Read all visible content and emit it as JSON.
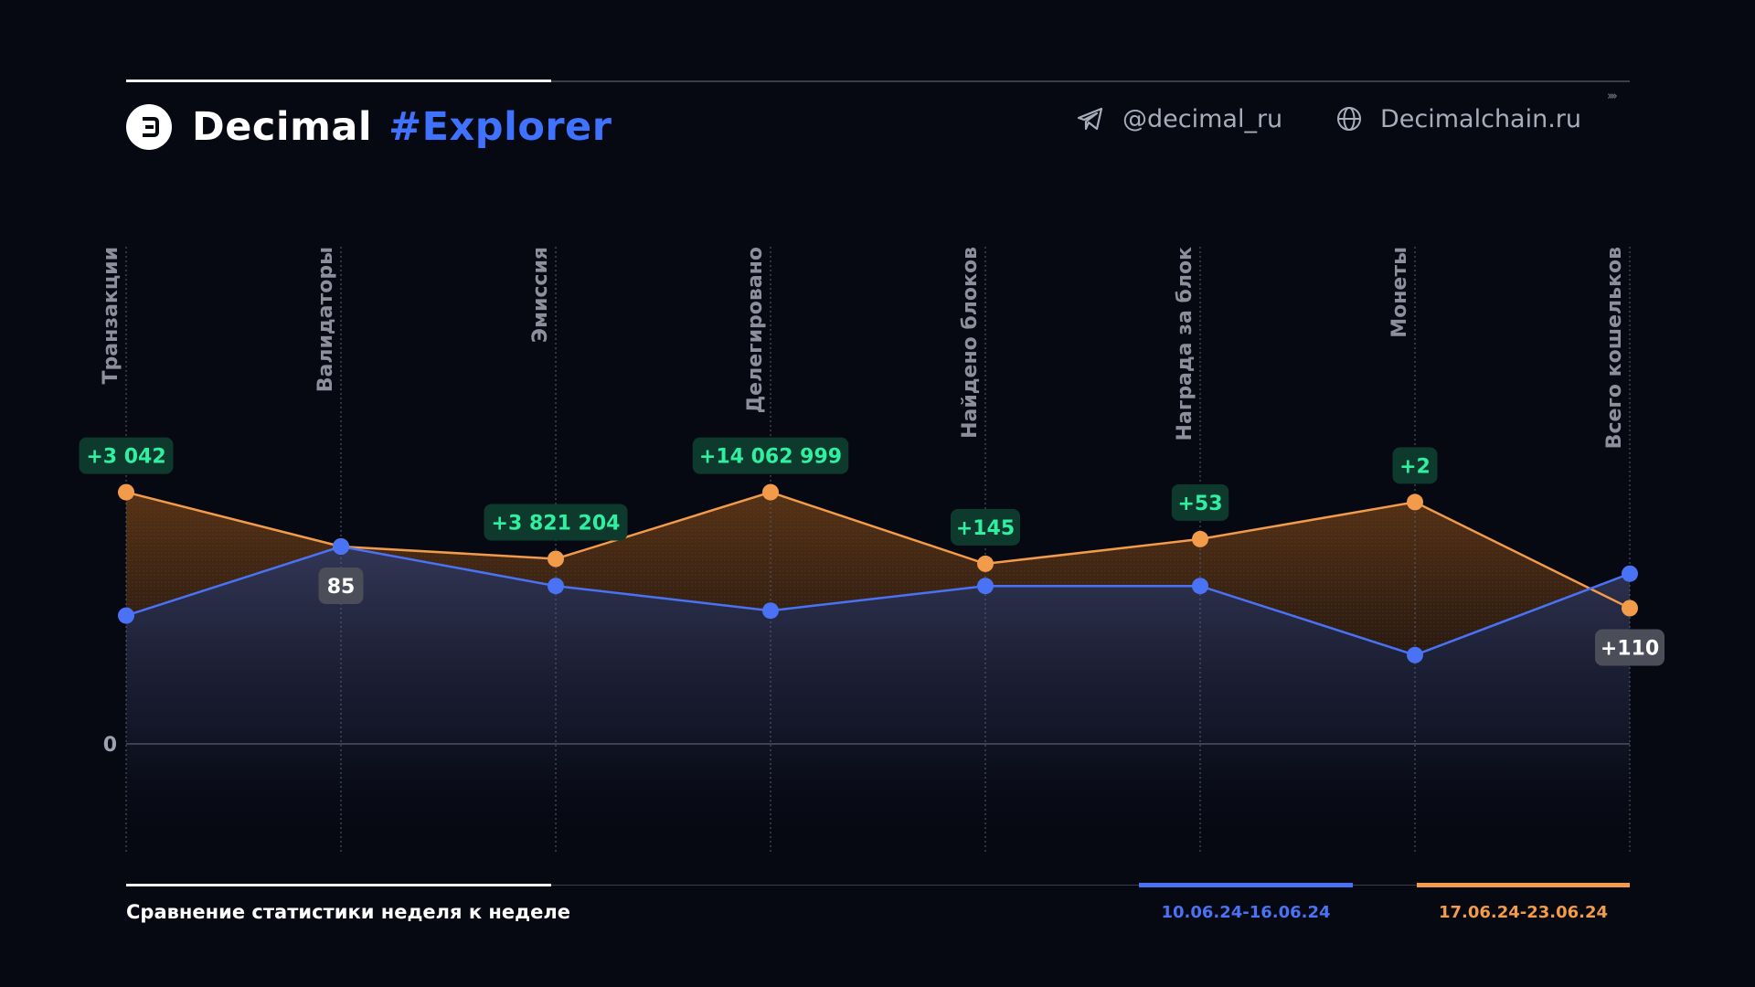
{
  "header": {
    "brand_name": "Decimal",
    "brand_tag": "#Explorer",
    "telegram": "@decimal_ru",
    "website": "Decimalchain.ru"
  },
  "footer": {
    "caption": "Сравнение статистики неделя к неделе"
  },
  "colors": {
    "series_prev": "#4a72f5",
    "series_curr": "#f29b4b",
    "delta_positive_bg": "#0e3a2e",
    "delta_positive_text": "#2ef0a0",
    "delta_neutral_bg": "#4b4d58",
    "background": "#060812"
  },
  "chart_data": {
    "type": "line",
    "categories": [
      "Транзакции",
      "Валидаторы",
      "Эмиссия",
      "Делегировано",
      "Найдено блоков",
      "Награда за блок",
      "Монеты",
      "Всего кошельков"
    ],
    "zero_label": "0",
    "series": [
      {
        "name": "10.06.24-16.06.24",
        "color": "#4a72f5",
        "values": [
          0.52,
          0.8,
          0.64,
          0.54,
          0.64,
          0.64,
          0.36,
          0.69
        ]
      },
      {
        "name": "17.06.24-23.06.24",
        "color": "#f29b4b",
        "values": [
          1.02,
          0.8,
          0.75,
          1.02,
          0.73,
          0.83,
          0.98,
          0.55
        ]
      }
    ],
    "annotations": [
      {
        "category": "Транзакции",
        "text": "+3 042",
        "kind": "positive",
        "anchor": "above"
      },
      {
        "category": "Валидаторы",
        "text": "85",
        "kind": "neutral",
        "anchor": "below"
      },
      {
        "category": "Эмиссия",
        "text": "+3 821 204",
        "kind": "positive",
        "anchor": "above"
      },
      {
        "category": "Делегировано",
        "text": "+14 062 999",
        "kind": "positive",
        "anchor": "above"
      },
      {
        "category": "Найдено блоков",
        "text": "+145",
        "kind": "positive",
        "anchor": "above"
      },
      {
        "category": "Награда за блок",
        "text": "+53",
        "kind": "positive",
        "anchor": "above"
      },
      {
        "category": "Монеты",
        "text": "+2",
        "kind": "positive",
        "anchor": "above"
      },
      {
        "category": "Всего кошельков",
        "text": "+110",
        "kind": "neutral",
        "anchor": "below"
      }
    ]
  }
}
